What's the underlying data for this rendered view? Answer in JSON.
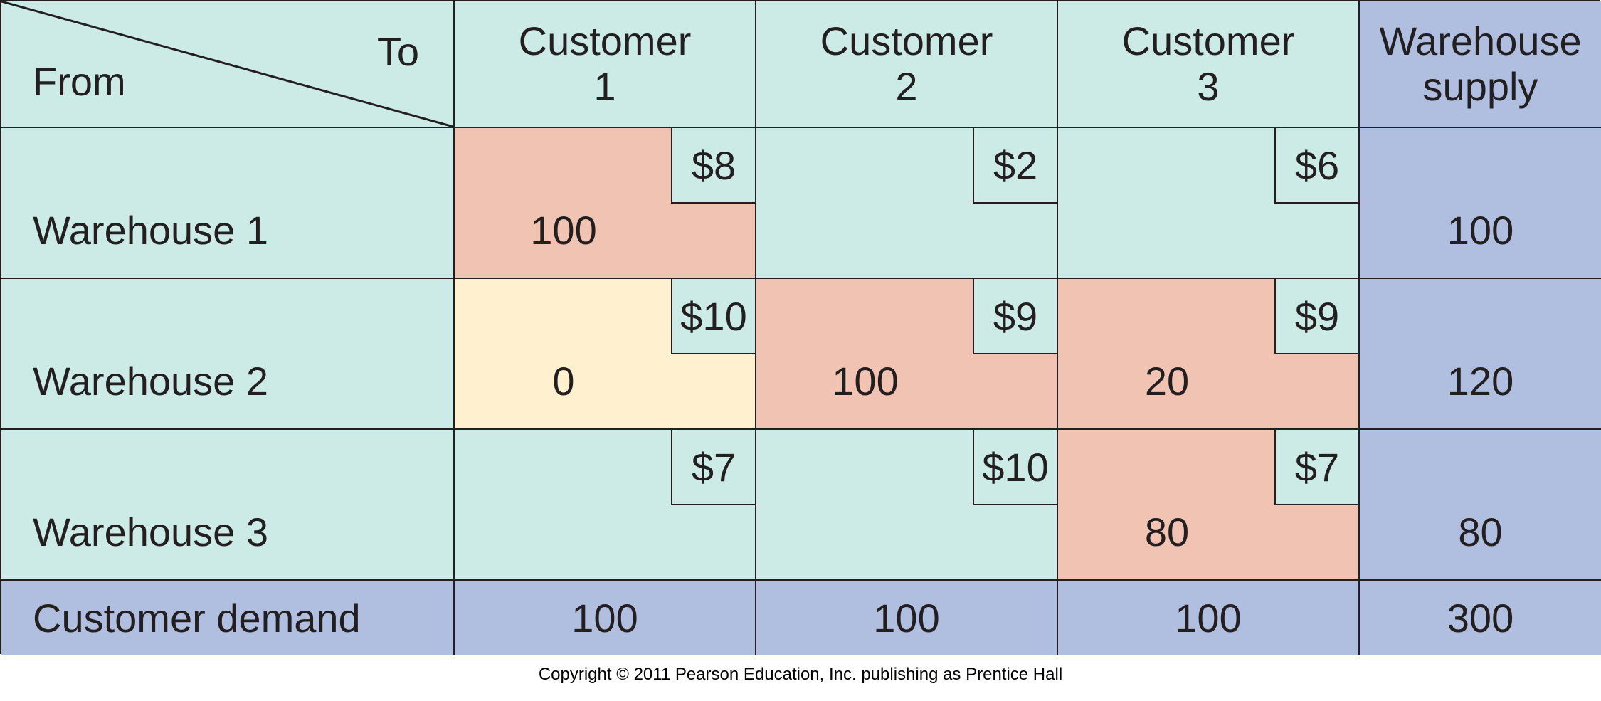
{
  "header": {
    "from_label": "From",
    "to_label": "To",
    "customers": [
      {
        "line1": "Customer",
        "line2": "1"
      },
      {
        "line1": "Customer",
        "line2": "2"
      },
      {
        "line1": "Customer",
        "line2": "3"
      }
    ],
    "supply_line1": "Warehouse",
    "supply_line2": "supply"
  },
  "rows": [
    {
      "label": "Warehouse 1",
      "cells": [
        {
          "cost": "$8",
          "qty": "100",
          "fill": "pink"
        },
        {
          "cost": "$2",
          "qty": "",
          "fill": "plain"
        },
        {
          "cost": "$6",
          "qty": "",
          "fill": "plain"
        }
      ],
      "supply": "100"
    },
    {
      "label": "Warehouse 2",
      "cells": [
        {
          "cost": "$10",
          "qty": "0",
          "fill": "yellow"
        },
        {
          "cost": "$9",
          "qty": "100",
          "fill": "pink"
        },
        {
          "cost": "$9",
          "qty": "20",
          "fill": "pink"
        }
      ],
      "supply": "120"
    },
    {
      "label": "Warehouse 3",
      "cells": [
        {
          "cost": "$7",
          "qty": "",
          "fill": "plain"
        },
        {
          "cost": "$10",
          "qty": "",
          "fill": "plain"
        },
        {
          "cost": "$7",
          "qty": "80",
          "fill": "pink"
        }
      ],
      "supply": "80"
    }
  ],
  "demand": {
    "label": "Customer demand",
    "values": [
      "100",
      "100",
      "100"
    ],
    "total": "300"
  },
  "copyright": "Copyright © 2011 Pearson Education, Inc. publishing as Prentice Hall",
  "colors": {
    "plain": "#cdebe6",
    "blue": "#b0bfe0",
    "pink": "#f0c3b3",
    "yellow": "#fff0cf",
    "line": "#231f20"
  }
}
